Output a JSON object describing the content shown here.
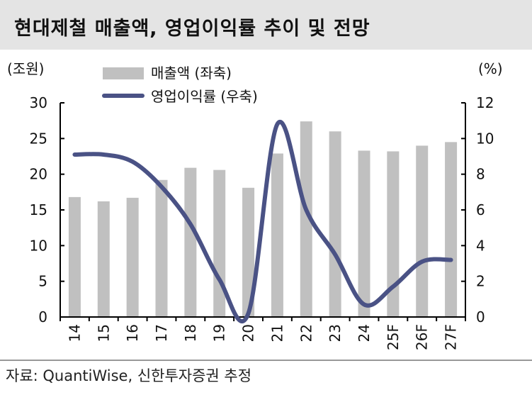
{
  "title": "현대제철 매출액, 영업이익률 추이 및 전망",
  "source": "자료: QuantiWise, 신한투자증권 추정",
  "chart_data": {
    "type": "bar+line",
    "categories": [
      "14",
      "15",
      "16",
      "17",
      "18",
      "19",
      "20",
      "21",
      "22",
      "23",
      "24",
      "25F",
      "26F",
      "27F"
    ],
    "left_axis": {
      "unit_label": "(조원)",
      "ylim": [
        0,
        30
      ],
      "ticks": [
        0,
        5,
        10,
        15,
        20,
        25,
        30
      ]
    },
    "right_axis": {
      "unit_label": "(%)",
      "ylim": [
        0,
        12
      ],
      "ticks": [
        0,
        2,
        4,
        6,
        8,
        10,
        12
      ]
    },
    "series": [
      {
        "name": "매출액 (좌축)",
        "type": "bar",
        "axis": "left",
        "color": "#c0c0c0",
        "values": [
          16.8,
          16.2,
          16.7,
          19.2,
          20.9,
          20.6,
          18.1,
          22.9,
          27.4,
          26.0,
          23.3,
          23.2,
          24.0,
          24.5
        ]
      },
      {
        "name": "영업이익률 (우축)",
        "type": "line",
        "axis": "right",
        "color": "#4a5285",
        "values": [
          9.1,
          9.1,
          8.7,
          7.3,
          5.2,
          2.1,
          0.2,
          10.8,
          6.0,
          3.5,
          0.7,
          1.7,
          3.1,
          3.2
        ]
      }
    ],
    "grid": false,
    "legend": "top-center"
  }
}
